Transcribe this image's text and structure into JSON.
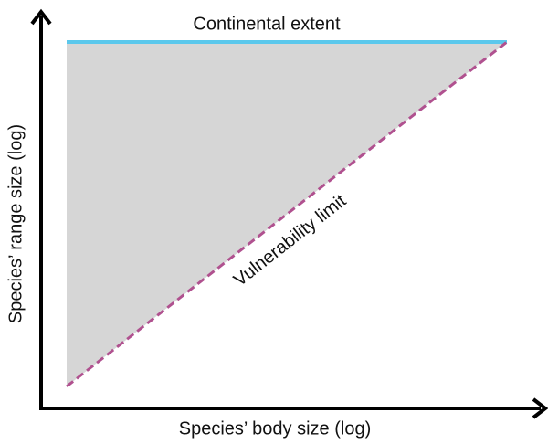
{
  "annotations": {
    "upper_limit": "Continental extent",
    "lower_limit": "Vulnerability limit"
  },
  "axes": {
    "y_label": "Species’ range size (log)",
    "x_label": "Species’ body size (log)"
  }
}
